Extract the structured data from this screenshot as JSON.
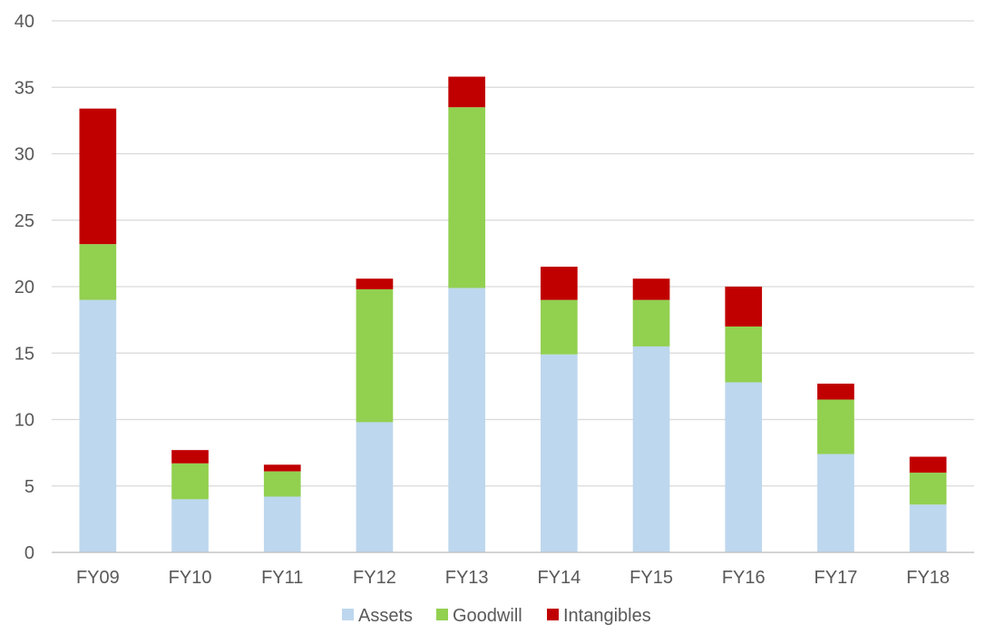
{
  "chart_data": {
    "type": "bar",
    "stacked": true,
    "title": "",
    "xlabel": "",
    "ylabel": "",
    "ylim": [
      0,
      40
    ],
    "yticks": [
      0,
      5,
      10,
      15,
      20,
      25,
      30,
      35,
      40
    ],
    "grid": true,
    "legend_position": "bottom",
    "categories": [
      "FY09",
      "FY10",
      "FY11",
      "FY12",
      "FY13",
      "FY14",
      "FY15",
      "FY16",
      "FY17",
      "FY18"
    ],
    "series": [
      {
        "name": "Assets",
        "color": "#BDD7EE",
        "values": [
          19.0,
          4.0,
          4.2,
          9.8,
          19.9,
          14.9,
          15.5,
          12.8,
          7.4,
          3.6
        ]
      },
      {
        "name": "Goodwill",
        "color": "#92D050",
        "values": [
          4.2,
          2.7,
          1.9,
          10.0,
          13.6,
          4.1,
          3.5,
          4.2,
          4.1,
          2.4
        ]
      },
      {
        "name": "Intangibles",
        "color": "#C00000",
        "values": [
          10.2,
          1.0,
          0.5,
          0.8,
          2.3,
          2.5,
          1.6,
          3.0,
          1.2,
          1.2
        ]
      }
    ]
  }
}
